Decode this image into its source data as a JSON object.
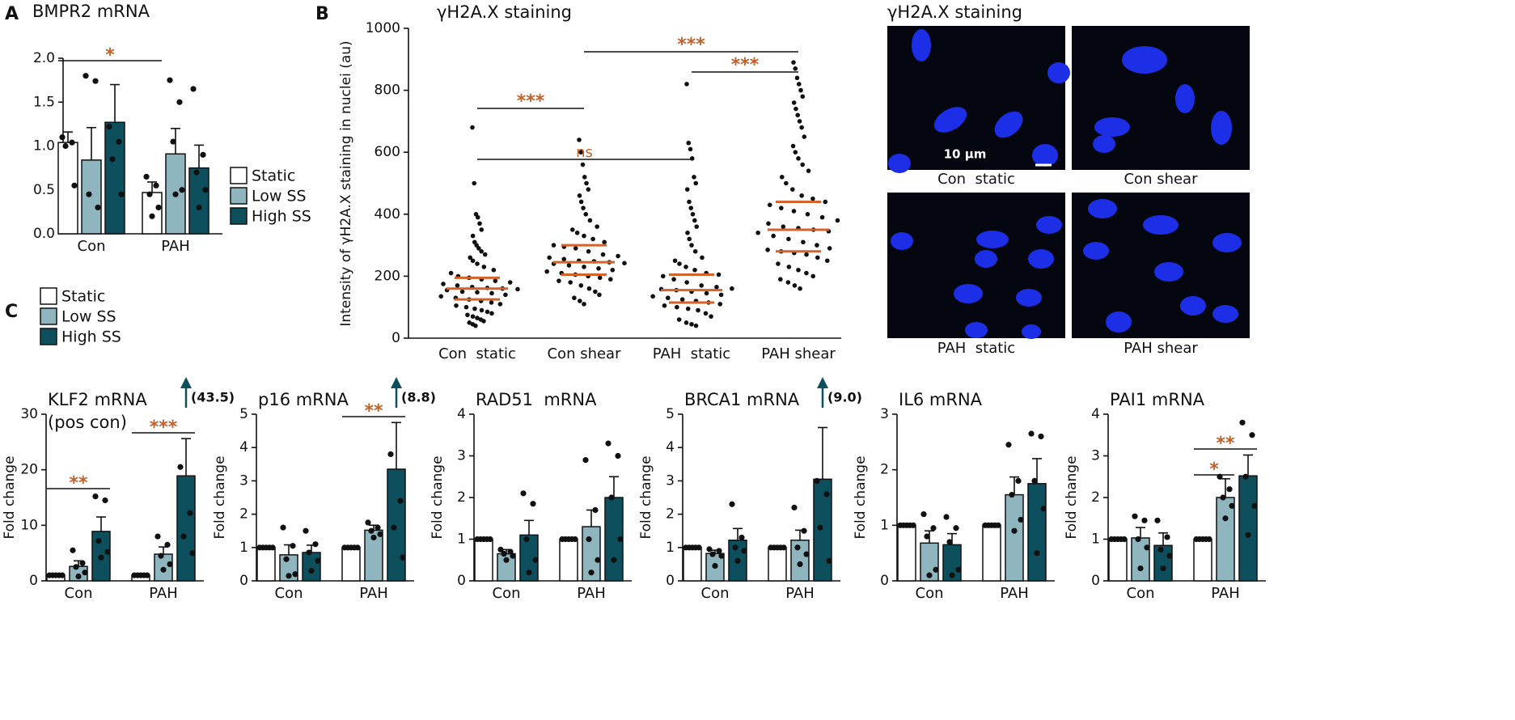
{
  "panel_labels": [
    "A",
    "B",
    "C"
  ],
  "micrographs": {
    "title": "γH2A.X staining",
    "labels": [
      "Con  static",
      "Con shear",
      "PAH  static",
      "PAH shear"
    ],
    "scale_bar": "10 μm"
  },
  "chart_data": [
    {
      "type": "bar",
      "title": "BMPR2 mRNA",
      "categories": [
        "Con",
        "PAH"
      ],
      "series": [
        {
          "name": "Static",
          "color": "#ffffff",
          "values": [
            1.04,
            0.47
          ],
          "errors": [
            0.12,
            0.12
          ],
          "points": [
            [
              1.1,
              1.04,
              1.0,
              0.55
            ],
            [
              0.65,
              0.55,
              0.45,
              0.3,
              0.2
            ]
          ]
        },
        {
          "name": "Low SS",
          "color": "#8fb5bf",
          "values": [
            0.84,
            0.91
          ],
          "errors": [
            0.37,
            0.29
          ],
          "points": [
            [
              1.8,
              1.74,
              0.45,
              0.3
            ],
            [
              1.75,
              1.5,
              1.05,
              0.5,
              0.45
            ]
          ]
        },
        {
          "name": "High SS",
          "color": "#0d4f5c",
          "values": [
            1.27,
            0.75
          ],
          "errors": [
            0.43,
            0.26
          ],
          "points": [
            [
              1.22,
              1.05,
              0.85,
              0.45
            ],
            [
              1.65,
              0.9,
              0.7,
              0.5,
              0.3
            ]
          ]
        }
      ],
      "ylim": [
        0,
        2.0
      ],
      "yticks": [
        {
          "value": 0,
          "label": "0.0"
        },
        {
          "value": 0.5,
          "label": "0.5"
        },
        {
          "value": 1,
          "label": "1.0"
        },
        {
          "value": 1.5,
          "label": "1.5"
        },
        {
          "value": 2,
          "label": "2.0"
        }
      ],
      "significance": [
        "*"
      ]
    },
    {
      "type": "strip",
      "title": "γH2A.X staining",
      "y_label": "Intensity of γH2A.X staining in nuclei (au)",
      "categories": [
        "Con  static",
        "Con shear",
        "PAH  static",
        "PAH shear"
      ],
      "points": [
        [
          680,
          500,
          400,
          390,
          370,
          350,
          330,
          310,
          300,
          290,
          280,
          270,
          260,
          250,
          240,
          230,
          220,
          210,
          200,
          195,
          190,
          185,
          180,
          175,
          170,
          165,
          162,
          160,
          158,
          155,
          150,
          148,
          145,
          140,
          135,
          130,
          125,
          120,
          115,
          110,
          105,
          100,
          95,
          90,
          85,
          80,
          75,
          70,
          65,
          60,
          55,
          50,
          45,
          40
        ],
        [
          640,
          600,
          560,
          520,
          500,
          480,
          460,
          440,
          420,
          400,
          380,
          360,
          350,
          340,
          330,
          320,
          310,
          300,
          295,
          290,
          280,
          270,
          265,
          260,
          255,
          250,
          248,
          245,
          242,
          240,
          235,
          230,
          225,
          220,
          215,
          210,
          205,
          200,
          195,
          190,
          185,
          180,
          170,
          160,
          150,
          140,
          130,
          120,
          110
        ],
        [
          820,
          630,
          610,
          580,
          520,
          500,
          480,
          440,
          420,
          400,
          380,
          360,
          340,
          320,
          300,
          280,
          260,
          250,
          240,
          230,
          220,
          210,
          205,
          200,
          190,
          180,
          170,
          165,
          160,
          158,
          155,
          150,
          145,
          140,
          135,
          130,
          125,
          120,
          115,
          110,
          105,
          100,
          95,
          90,
          80,
          70,
          60,
          50,
          45,
          40
        ],
        [
          890,
          870,
          840,
          820,
          800,
          780,
          760,
          740,
          720,
          700,
          680,
          650,
          620,
          600,
          580,
          560,
          540,
          520,
          500,
          480,
          460,
          450,
          440,
          430,
          420,
          410,
          400,
          390,
          380,
          370,
          360,
          355,
          350,
          345,
          340,
          330,
          320,
          310,
          300,
          290,
          285,
          280,
          275,
          270,
          260,
          250,
          240,
          230,
          220,
          210,
          200,
          190,
          180,
          170,
          160
        ]
      ],
      "medians": [
        160,
        245,
        155,
        350
      ],
      "q1": [
        125,
        205,
        115,
        280
      ],
      "q3": [
        195,
        300,
        205,
        440
      ],
      "line_color": "#d4622a",
      "ylim": [
        0,
        1000
      ],
      "yticks": [
        0,
        200,
        400,
        600,
        800,
        1000
      ],
      "significance": [
        "***",
        "ns",
        "***",
        "***"
      ]
    },
    {
      "type": "bar",
      "title": "KLF2 mRNA",
      "subtitle": "(pos con)",
      "y_label": "Fold change",
      "categories": [
        "Con",
        "PAH"
      ],
      "series": [
        {
          "name": "Static",
          "color": "#ffffff",
          "values": [
            1.0,
            1.0
          ],
          "errors": [
            0,
            0
          ],
          "points": [
            [
              1,
              1,
              1,
              1,
              1
            ],
            [
              1,
              1,
              1,
              1,
              1
            ]
          ]
        },
        {
          "name": "Low SS",
          "color": "#8fb5bf",
          "values": [
            2.6,
            4.8
          ],
          "errors": [
            1.0,
            1.3
          ],
          "points": [
            [
              5.5,
              3.2,
              2.5,
              1.5,
              0.8
            ],
            [
              8,
              6.5,
              4.5,
              3,
              2
            ]
          ]
        },
        {
          "name": "High SS",
          "color": "#0d4f5c",
          "values": [
            8.9,
            18.9
          ],
          "errors": [
            2.6,
            6.7
          ],
          "points": [
            [
              15.2,
              14.5,
              7.2,
              5.2,
              4.2
            ],
            [
              20.5,
              12.2,
              8,
              5
            ]
          ]
        }
      ],
      "ylim": [
        0,
        30
      ],
      "yticks": [
        0,
        10,
        20,
        30
      ],
      "annotation": "(43.5)",
      "significance": [
        "**",
        "***"
      ]
    },
    {
      "type": "bar",
      "title": "p16 mRNA",
      "y_label": "Fold change",
      "categories": [
        "Con",
        "PAH"
      ],
      "series": [
        {
          "color": "#ffffff",
          "values": [
            1.0,
            1.0
          ],
          "errors": [
            0,
            0
          ],
          "points": [
            [
              1,
              1,
              1,
              1,
              1
            ],
            [
              1,
              1,
              1,
              1,
              1
            ]
          ]
        },
        {
          "color": "#8fb5bf",
          "values": [
            0.78,
            1.52
          ],
          "errors": [
            0.3,
            0.15
          ],
          "points": [
            [
              1.6,
              1.05,
              0.65,
              0.2,
              0.15
            ],
            [
              1.75,
              1.6,
              1.5,
              1.4,
              1.3
            ]
          ]
        },
        {
          "color": "#0d4f5c",
          "values": [
            0.85,
            3.35
          ],
          "errors": [
            0.22,
            1.4
          ],
          "points": [
            [
              1.5,
              1.1,
              0.85,
              0.6,
              0.3
            ],
            [
              3.8,
              2.4,
              1.6,
              0.7
            ]
          ]
        }
      ],
      "ylim": [
        0,
        5
      ],
      "yticks": [
        0,
        1,
        2,
        3,
        4,
        5
      ],
      "annotation": "(8.8)",
      "significance": [
        "**"
      ]
    },
    {
      "type": "bar",
      "title": "RAD51  mRNA",
      "y_label": "Fold change",
      "categories": [
        "Con",
        "PAH"
      ],
      "series": [
        {
          "color": "#ffffff",
          "values": [
            1.0,
            1.0
          ],
          "errors": [
            0,
            0
          ],
          "points": [
            [
              1,
              1,
              1,
              1,
              1
            ],
            [
              1,
              1,
              1,
              1,
              1
            ]
          ]
        },
        {
          "color": "#8fb5bf",
          "values": [
            0.65,
            1.3
          ],
          "errors": [
            0.1,
            0.4
          ],
          "points": [
            [
              0.75,
              0.7,
              0.65,
              0.6,
              0.5
            ],
            [
              2.9,
              1.7,
              1.0,
              0.5,
              0.2
            ]
          ]
        },
        {
          "color": "#0d4f5c",
          "values": [
            1.1,
            2.0
          ],
          "errors": [
            0.35,
            0.5
          ],
          "points": [
            [
              2.1,
              1.85,
              1.0,
              0.5,
              0.2
            ],
            [
              3.3,
              3.0,
              2.0,
              1.0,
              0.5
            ]
          ]
        }
      ],
      "ylim": [
        0,
        4
      ],
      "yticks": [
        0,
        1,
        2,
        3,
        4
      ]
    },
    {
      "type": "bar",
      "title": "BRCA1 mRNA",
      "y_label": "Fold change",
      "categories": [
        "Con",
        "PAH"
      ],
      "series": [
        {
          "color": "#ffffff",
          "values": [
            1.0,
            1.0
          ],
          "errors": [
            0,
            0
          ],
          "points": [
            [
              1,
              1,
              1,
              1,
              1
            ],
            [
              1,
              1,
              1,
              1,
              1
            ]
          ]
        },
        {
          "color": "#8fb5bf",
          "values": [
            0.82,
            1.22
          ],
          "errors": [
            0.1,
            0.3
          ],
          "points": [
            [
              0.95,
              0.9,
              0.8,
              0.75,
              0.45
            ],
            [
              2.2,
              1.5,
              1.0,
              0.8,
              0.5
            ]
          ]
        },
        {
          "color": "#0d4f5c",
          "values": [
            1.22,
            3.05
          ],
          "errors": [
            0.35,
            1.55
          ],
          "points": [
            [
              2.3,
              1.3,
              1.0,
              0.9,
              0.6
            ],
            [
              3.0,
              2.6,
              1.6,
              0.6
            ]
          ]
        }
      ],
      "ylim": [
        0,
        5
      ],
      "yticks": [
        0,
        1,
        2,
        3,
        4,
        5
      ],
      "annotation": "(9.0)"
    },
    {
      "type": "bar",
      "title": "IL6 mRNA",
      "y_label": "Fold change",
      "categories": [
        "Con",
        "PAH"
      ],
      "series": [
        {
          "color": "#ffffff",
          "values": [
            1.0,
            1.0
          ],
          "errors": [
            0,
            0
          ],
          "points": [
            [
              1,
              1,
              1,
              1,
              1
            ],
            [
              1,
              1,
              1,
              1,
              1
            ]
          ]
        },
        {
          "color": "#8fb5bf",
          "values": [
            0.68,
            1.55
          ],
          "errors": [
            0.22,
            0.32
          ],
          "points": [
            [
              1.2,
              0.95,
              0.8,
              0.2,
              0.1
            ],
            [
              2.45,
              1.8,
              1.55,
              1.1,
              0.9
            ]
          ]
        },
        {
          "color": "#0d4f5c",
          "values": [
            0.65,
            1.75
          ],
          "errors": [
            0.2,
            0.45
          ],
          "points": [
            [
              1.15,
              0.95,
              0.7,
              0.2,
              0.1
            ],
            [
              2.65,
              2.6,
              1.8,
              1.3,
              0.5
            ]
          ]
        }
      ],
      "ylim": [
        0,
        3
      ],
      "yticks": [
        0,
        1,
        2,
        3
      ]
    },
    {
      "type": "bar",
      "title": "PAI1 mRNA",
      "y_label": "Fold change",
      "categories": [
        "Con",
        "PAH"
      ],
      "series": [
        {
          "color": "#ffffff",
          "values": [
            1.0,
            1.0
          ],
          "errors": [
            0,
            0
          ],
          "points": [
            [
              1,
              1,
              1,
              1,
              1
            ],
            [
              1,
              1,
              1,
              1,
              1
            ]
          ]
        },
        {
          "color": "#8fb5bf",
          "values": [
            1.03,
            2.0
          ],
          "errors": [
            0.25,
            0.45
          ],
          "points": [
            [
              1.55,
              1.45,
              1.0,
              0.8,
              0.3
            ],
            [
              2.5,
              2.2,
              2.0,
              1.8,
              1.5
            ]
          ]
        },
        {
          "color": "#0d4f5c",
          "values": [
            0.85,
            2.52
          ],
          "errors": [
            0.3,
            0.5
          ],
          "points": [
            [
              1.45,
              1.05,
              0.75,
              0.6,
              0.3
            ],
            [
              3.8,
              3.5,
              2.5,
              1.8,
              1.1
            ]
          ]
        }
      ],
      "ylim": [
        0,
        4
      ],
      "yticks": [
        0,
        1,
        2,
        3,
        4
      ],
      "significance": [
        "*",
        "**"
      ]
    }
  ]
}
